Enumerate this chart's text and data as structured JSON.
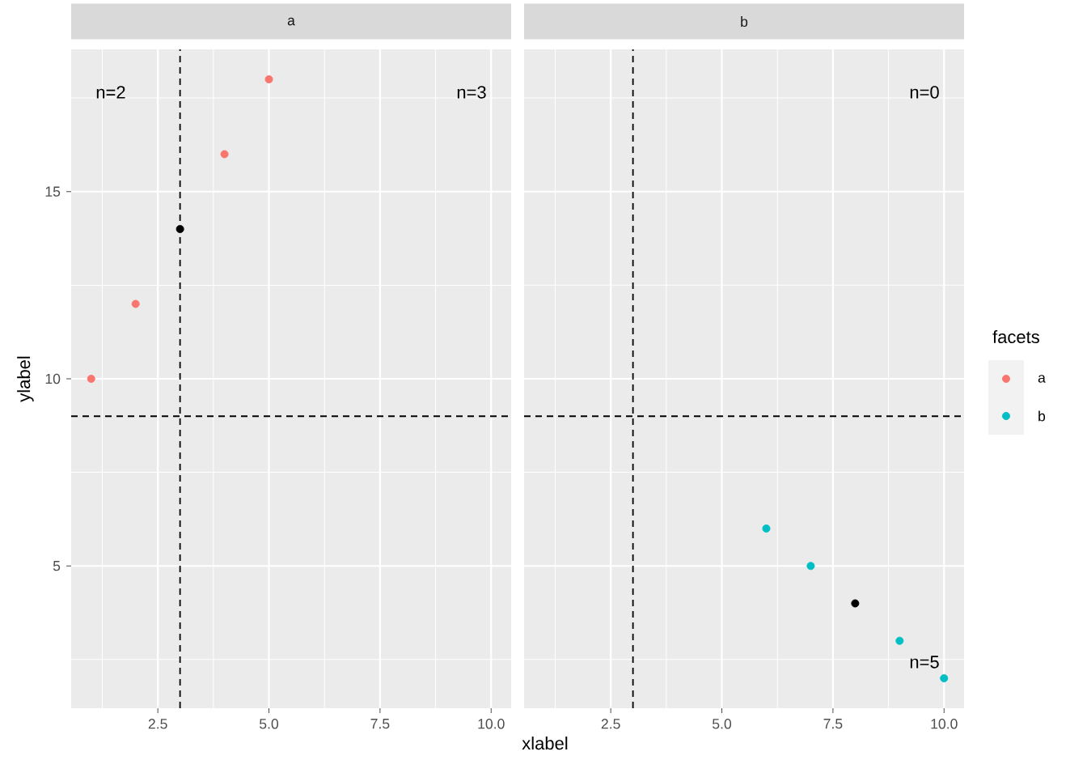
{
  "chart_data": [
    {
      "type": "scatter",
      "title": "a",
      "xlabel": "xlabel",
      "ylabel": "ylabel",
      "xlim": [
        0.55,
        10.45
      ],
      "ylim": [
        1.2,
        18.8
      ],
      "xticks": [
        {
          "value": 2.5,
          "label": "2.5"
        },
        {
          "value": 5,
          "label": "5.0"
        },
        {
          "value": 7.5,
          "label": "7.5"
        },
        {
          "value": 10,
          "label": "10.0"
        }
      ],
      "yticks": [
        5,
        10,
        15
      ],
      "grid": true,
      "marker": "circle",
      "series": [
        {
          "name": "a",
          "color": "#f8766d",
          "x": [
            1,
            2,
            4,
            5
          ],
          "values": [
            10,
            12,
            16,
            18
          ]
        },
        {
          "color": "#000000",
          "x": [
            3
          ],
          "values": [
            14
          ]
        }
      ],
      "ref_lines": [
        {
          "axis": "x",
          "value": 3,
          "line_style": "dashed",
          "color": "#000000"
        },
        {
          "axis": "y",
          "value": 9,
          "line_style": "dashed",
          "color": "#000000"
        }
      ],
      "annotations": [
        "n=2",
        "n=3"
      ]
    },
    {
      "type": "scatter",
      "title": "b",
      "legend_title": "facets",
      "legend": "right",
      "tick_labels": "x",
      "xlim": [
        0.55,
        10.45
      ],
      "ylim": [
        1.2,
        18.8
      ],
      "xticks": [
        {
          "value": 2.5,
          "label": "2.5"
        },
        {
          "value": 5,
          "label": "5.0"
        },
        {
          "value": 7.5,
          "label": "7.5"
        },
        {
          "value": 10,
          "label": "10.0"
        }
      ],
      "yticks": [
        5,
        10,
        15
      ],
      "grid": true,
      "marker": "circle",
      "series": [
        {
          "name": "b",
          "color": "#00bfc4",
          "x": [
            6,
            7,
            9,
            10
          ],
          "values": [
            6,
            5,
            3,
            2
          ]
        },
        {
          "color": "#000000",
          "x": [
            8
          ],
          "values": [
            4
          ]
        }
      ],
      "ref_lines": [
        {
          "axis": "x",
          "value": 3,
          "line_style": "dashed",
          "color": "#000000"
        },
        {
          "axis": "y",
          "value": 9,
          "line_style": "dashed",
          "color": "#000000"
        }
      ],
      "annotations": [
        "n=0",
        "n=5"
      ]
    }
  ]
}
